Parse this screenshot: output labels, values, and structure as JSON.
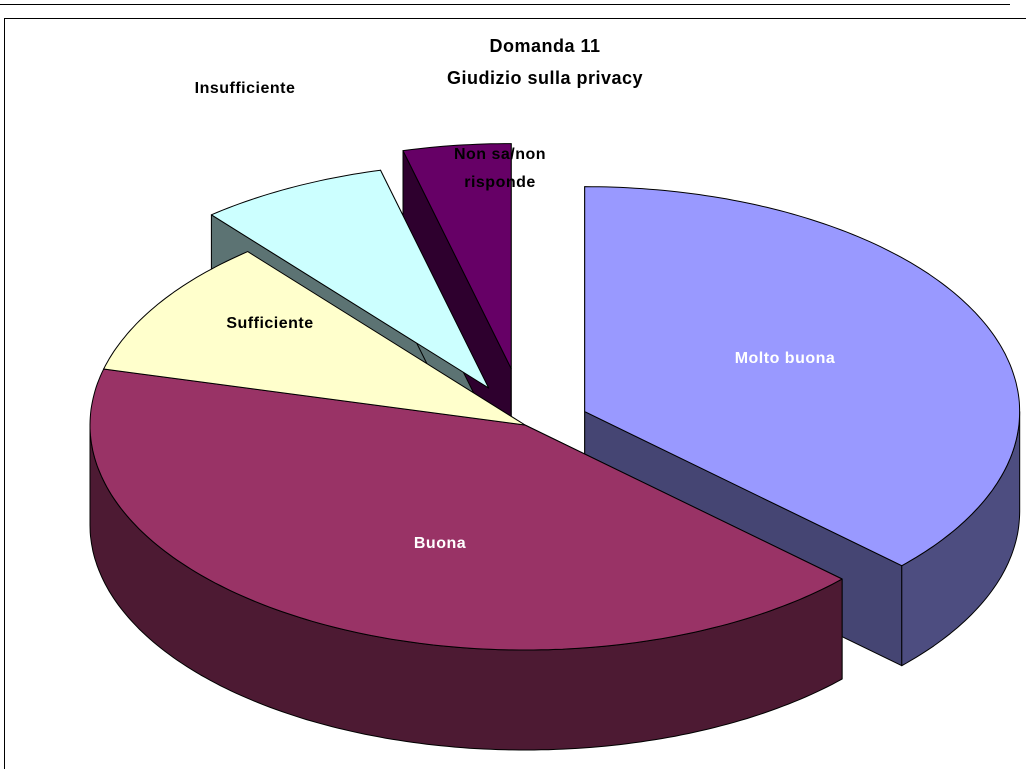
{
  "chart_data": {
    "type": "pie",
    "title": "Domanda 11",
    "subtitle": "Giudizio sulla privacy",
    "categories": [
      "Molto buona",
      "Buona",
      "Sufficiente",
      "Insufficiente",
      "Non sa/non risponde"
    ],
    "values": [
      37,
      42,
      10,
      7,
      4
    ],
    "colors": [
      "#9999ff",
      "#993366",
      "#ffffcc",
      "#ccffff",
      "#660066"
    ],
    "label_colors": [
      "#ffffff",
      "#ffffff",
      "#000000",
      "#000000",
      "#000000"
    ]
  }
}
